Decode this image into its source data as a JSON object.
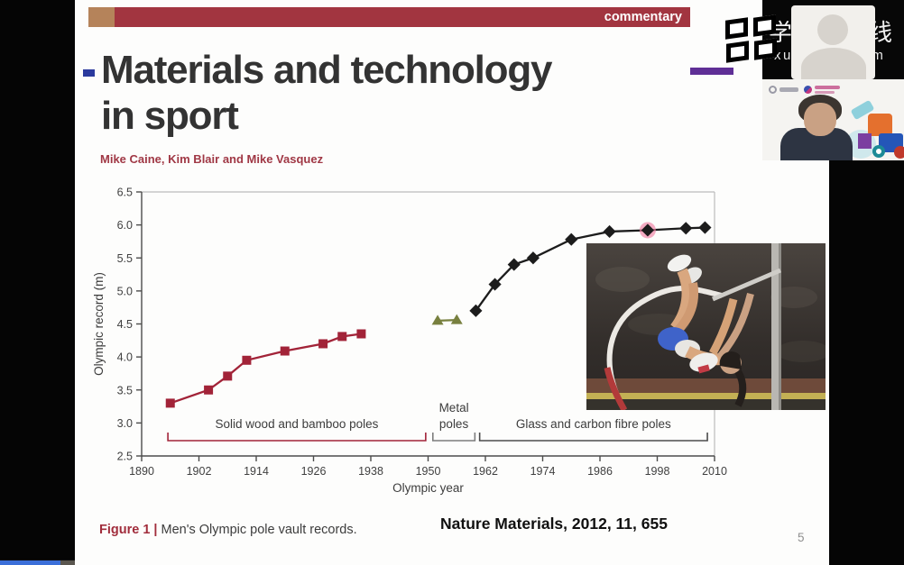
{
  "commentary_bar": {
    "label": "commentary"
  },
  "slide": {
    "title_line1": "Materials and technology",
    "title_line2": "in sport",
    "authors": "Mike Caine, Kim Blair and Mike Vasquez",
    "caption_prefix": "Figure 1 | ",
    "caption_text": "Men's Olympic pole vault records.",
    "citation": "Nature Materials, 2012, 11, 655",
    "page_number": "5"
  },
  "overlay": {
    "platform_name_cn": "学堂在线",
    "platform_url": "xuetangx.com"
  },
  "chart_data": {
    "type": "line",
    "title": "Men's Olympic pole vault records",
    "xlabel": "Olympic year",
    "ylabel": "Olympic record (m)",
    "xlim": [
      1890,
      2010
    ],
    "ylim": [
      2.5,
      6.5
    ],
    "x_ticks": [
      1890,
      1902,
      1914,
      1926,
      1938,
      1950,
      1962,
      1974,
      1986,
      1998,
      2010
    ],
    "y_ticks": [
      2.5,
      3.0,
      3.5,
      4.0,
      4.5,
      5.0,
      5.5,
      6.0,
      6.5
    ],
    "grid": false,
    "legend_position": "none",
    "series": [
      {
        "name": "Solid wood and bamboo poles",
        "marker": "square",
        "color": "#a22338",
        "points": [
          [
            1896,
            3.3
          ],
          [
            1904,
            3.5
          ],
          [
            1908,
            3.71
          ],
          [
            1912,
            3.95
          ],
          [
            1920,
            4.09
          ],
          [
            1928,
            4.2
          ],
          [
            1932,
            4.31
          ],
          [
            1936,
            4.35
          ]
        ]
      },
      {
        "name": "Metal poles",
        "marker": "triangle",
        "color": "#78803f",
        "points": [
          [
            1952,
            4.55
          ],
          [
            1956,
            4.56
          ]
        ]
      },
      {
        "name": "Glass and carbon fibre poles",
        "marker": "diamond",
        "color": "#1c1c1c",
        "points": [
          [
            1960,
            4.7
          ],
          [
            1964,
            5.1
          ],
          [
            1968,
            5.4
          ],
          [
            1972,
            5.5
          ],
          [
            1980,
            5.78
          ],
          [
            1988,
            5.9
          ],
          [
            1996,
            5.92
          ],
          [
            2004,
            5.95
          ],
          [
            2008,
            5.96
          ]
        ],
        "highlight_year": 1996,
        "highlight_color": "#ef7fa3"
      }
    ],
    "annotations": [
      {
        "label_lines": [
          "Solid wood and bamboo poles"
        ],
        "from_year": 1895.5,
        "to_year": 1949.5,
        "color": "#a22338"
      },
      {
        "label_lines": [
          "Metal",
          "poles"
        ],
        "from_year": 1951.0,
        "to_year": 1959.8,
        "color": "#7d7d7d"
      },
      {
        "label_lines": [
          "Glass and carbon fibre poles"
        ],
        "from_year": 1960.8,
        "to_year": 2008.5,
        "color": "#4c4c4c"
      }
    ]
  },
  "player": {
    "progress_color": "#3b6fd9"
  }
}
